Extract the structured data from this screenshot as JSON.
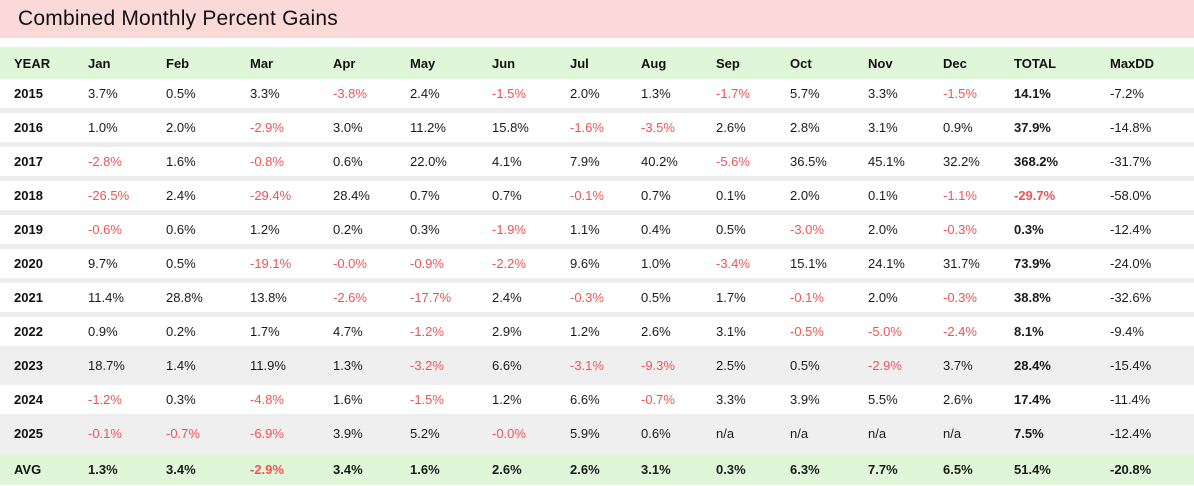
{
  "title": "Combined Monthly Percent Gains",
  "colors": {
    "title_bg": "#fbd9d9",
    "header_bg": "#e0f6d9",
    "shaded_row_bg": "#efefef",
    "row_separator": "#ededed",
    "negative_text": "#f05454",
    "text": "#1a1a1a"
  },
  "chart_data": {
    "type": "table",
    "title": "Combined Monthly Percent Gains",
    "columns": [
      "YEAR",
      "Jan",
      "Feb",
      "Mar",
      "Apr",
      "May",
      "Jun",
      "Jul",
      "Aug",
      "Sep",
      "Oct",
      "Nov",
      "Dec",
      "TOTAL",
      "MaxDD"
    ],
    "rows": [
      {
        "year": "2015",
        "shaded": false,
        "values": [
          "3.7%",
          "0.5%",
          "3.3%",
          "-3.8%",
          "2.4%",
          "-1.5%",
          "2.0%",
          "1.3%",
          "-1.7%",
          "5.7%",
          "3.3%",
          "-1.5%",
          "14.1%",
          "-7.2%"
        ]
      },
      {
        "year": "2016",
        "shaded": false,
        "values": [
          "1.0%",
          "2.0%",
          "-2.9%",
          "3.0%",
          "11.2%",
          "15.8%",
          "-1.6%",
          "-3.5%",
          "2.6%",
          "2.8%",
          "3.1%",
          "0.9%",
          "37.9%",
          "-14.8%"
        ]
      },
      {
        "year": "2017",
        "shaded": false,
        "values": [
          "-2.8%",
          "1.6%",
          "-0.8%",
          "0.6%",
          "22.0%",
          "4.1%",
          "7.9%",
          "40.2%",
          "-5.6%",
          "36.5%",
          "45.1%",
          "32.2%",
          "368.2%",
          "-31.7%"
        ]
      },
      {
        "year": "2018",
        "shaded": false,
        "values": [
          "-26.5%",
          "2.4%",
          "-29.4%",
          "28.4%",
          "0.7%",
          "0.7%",
          "-0.1%",
          "0.7%",
          "0.1%",
          "2.0%",
          "0.1%",
          "-1.1%",
          "-29.7%",
          "-58.0%"
        ]
      },
      {
        "year": "2019",
        "shaded": false,
        "values": [
          "-0.6%",
          "0.6%",
          "1.2%",
          "0.2%",
          "0.3%",
          "-1.9%",
          "1.1%",
          "0.4%",
          "0.5%",
          "-3.0%",
          "2.0%",
          "-0.3%",
          "0.3%",
          "-12.4%"
        ]
      },
      {
        "year": "2020",
        "shaded": false,
        "values": [
          "9.7%",
          "0.5%",
          "-19.1%",
          "-0.0%",
          "-0.9%",
          "-2.2%",
          "9.6%",
          "1.0%",
          "-3.4%",
          "15.1%",
          "24.1%",
          "31.7%",
          "73.9%",
          "-24.0%"
        ]
      },
      {
        "year": "2021",
        "shaded": false,
        "values": [
          "11.4%",
          "28.8%",
          "13.8%",
          "-2.6%",
          "-17.7%",
          "2.4%",
          "-0.3%",
          "0.5%",
          "1.7%",
          "-0.1%",
          "2.0%",
          "-0.3%",
          "38.8%",
          "-32.6%"
        ]
      },
      {
        "year": "2022",
        "shaded": false,
        "values": [
          "0.9%",
          "0.2%",
          "1.7%",
          "4.7%",
          "-1.2%",
          "2.9%",
          "1.2%",
          "2.6%",
          "3.1%",
          "-0.5%",
          "-5.0%",
          "-2.4%",
          "8.1%",
          "-9.4%"
        ]
      },
      {
        "year": "2023",
        "shaded": true,
        "values": [
          "18.7%",
          "1.4%",
          "11.9%",
          "1.3%",
          "-3.2%",
          "6.6%",
          "-3.1%",
          "-9.3%",
          "2.5%",
          "0.5%",
          "-2.9%",
          "3.7%",
          "28.4%",
          "-15.4%"
        ]
      },
      {
        "year": "2024",
        "shaded": false,
        "values": [
          "-1.2%",
          "0.3%",
          "-4.8%",
          "1.6%",
          "-1.5%",
          "1.2%",
          "6.6%",
          "-0.7%",
          "3.3%",
          "3.9%",
          "5.5%",
          "2.6%",
          "17.4%",
          "-11.4%"
        ]
      },
      {
        "year": "2025",
        "shaded": true,
        "values": [
          "-0.1%",
          "-0.7%",
          "-6.9%",
          "3.9%",
          "5.2%",
          "-0.0%",
          "5.9%",
          "0.6%",
          "n/a",
          "n/a",
          "n/a",
          "n/a",
          "7.5%",
          "-12.4%"
        ]
      }
    ],
    "avg_row": {
      "year": "AVG",
      "values": [
        "1.3%",
        "3.4%",
        "-2.9%",
        "3.4%",
        "1.6%",
        "2.6%",
        "2.6%",
        "3.1%",
        "0.3%",
        "6.3%",
        "7.7%",
        "6.5%",
        "51.4%",
        "-20.8%"
      ]
    }
  }
}
